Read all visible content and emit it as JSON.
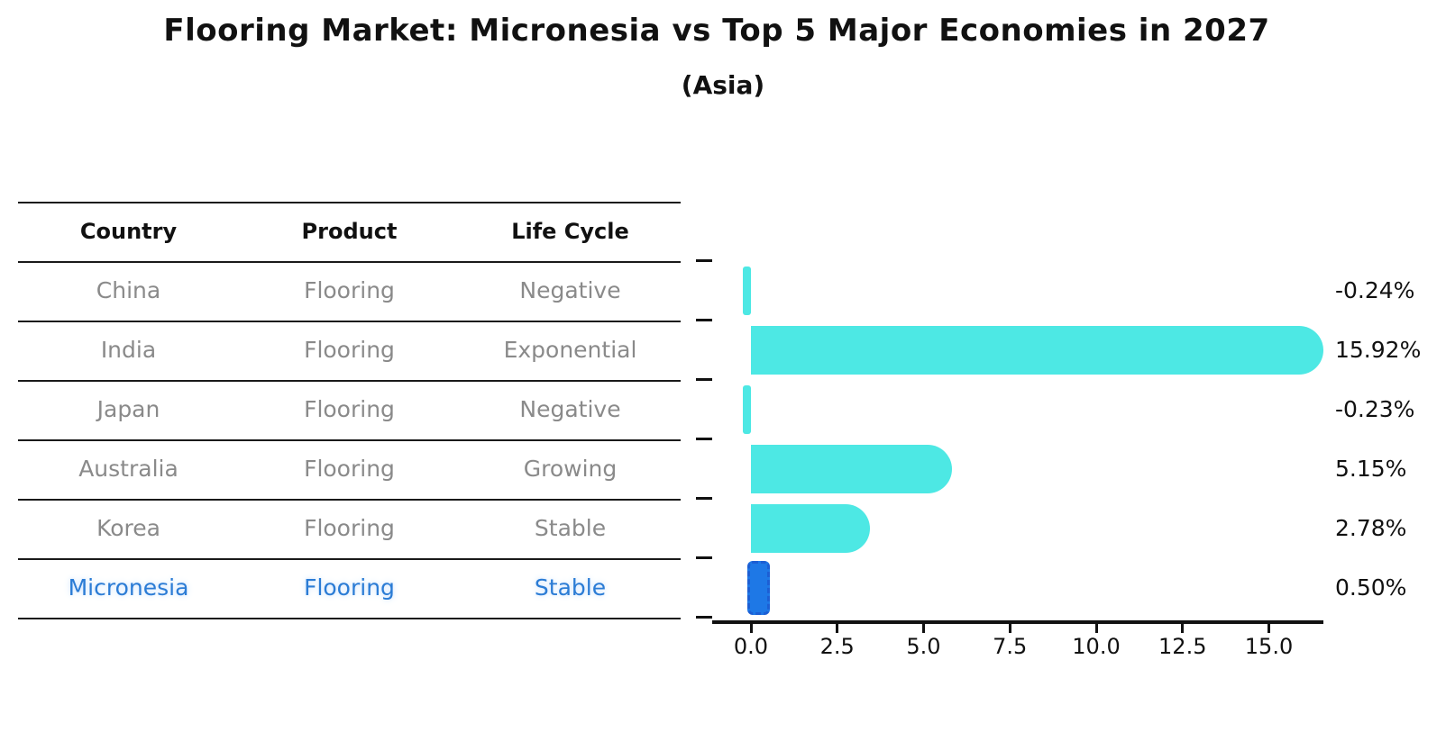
{
  "title": "Flooring Market: Micronesia vs Top 5 Major Economies in 2027",
  "subtitle": "(Asia)",
  "table": {
    "headers": [
      "Country",
      "Product",
      "Life Cycle"
    ],
    "rows": [
      {
        "country": "China",
        "product": "Flooring",
        "life_cycle": "Negative",
        "highlight": false
      },
      {
        "country": "India",
        "product": "Flooring",
        "life_cycle": "Exponential",
        "highlight": false
      },
      {
        "country": "Japan",
        "product": "Flooring",
        "life_cycle": "Negative",
        "highlight": false
      },
      {
        "country": "Australia",
        "product": "Flooring",
        "life_cycle": "Growing",
        "highlight": false
      },
      {
        "country": "Korea",
        "product": "Flooring",
        "life_cycle": "Stable",
        "highlight": false
      },
      {
        "country": "Micronesia",
        "product": "Flooring",
        "life_cycle": "Stable",
        "highlight": true
      }
    ]
  },
  "chart_data": {
    "type": "bar",
    "orientation": "horizontal",
    "title": "Flooring Market: Micronesia vs Top 5 Major Economies in 2027",
    "subtitle": "(Asia)",
    "categories": [
      "China",
      "India",
      "Japan",
      "Australia",
      "Korea",
      "Micronesia"
    ],
    "values": [
      -0.24,
      15.92,
      -0.23,
      5.15,
      2.78,
      0.5
    ],
    "value_labels": [
      "-0.24%",
      "15.92%",
      "-0.23%",
      "5.15%",
      "2.78%",
      "0.50%"
    ],
    "x_tick_values": [
      0,
      2.5,
      5,
      7.5,
      10,
      12.5,
      15
    ],
    "x_tick_labels": [
      "0.0",
      "2.5",
      "5.0",
      "7.5",
      "10.0",
      "12.5",
      "15.0"
    ],
    "xlim": [
      -1.2,
      16.6
    ],
    "grid": false,
    "legend": "none",
    "xlabel": "",
    "ylabel": "",
    "highlight_index": 5,
    "colors": {
      "bar": "#4de8e4",
      "highlight_bar": "#1e78e6",
      "highlight_border": "#1c5fd4",
      "highlight_text": "#2b7cd5",
      "row_text": "#8a8a8a",
      "line": "#1a1a1a",
      "axis_text": "#111111"
    }
  }
}
